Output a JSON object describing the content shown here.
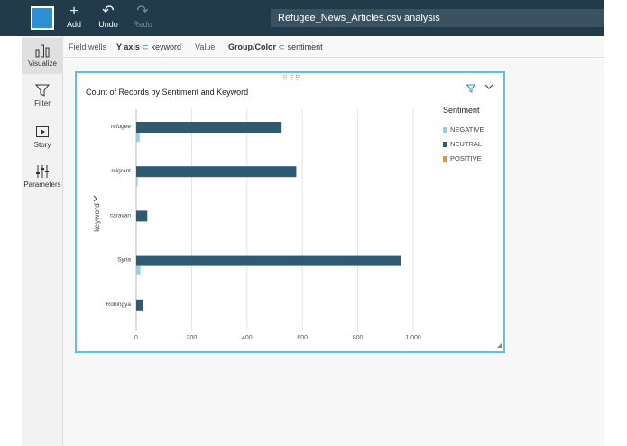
{
  "toolbar": {
    "add_label": "Add",
    "undo_label": "Undo",
    "redo_label": "Redo",
    "analysis_title": "Refugee_News_Articles.csv analysis"
  },
  "nav": {
    "items": [
      {
        "label": "Visualize",
        "icon": "bar-chart-icon"
      },
      {
        "label": "Filter",
        "icon": "filter-icon"
      },
      {
        "label": "Story",
        "icon": "story-icon"
      },
      {
        "label": "Parameters",
        "icon": "parameters-icon"
      }
    ]
  },
  "fieldwells": {
    "label": "Field wells",
    "y_axis_label": "Y axis",
    "y_axis_value": "keyword",
    "value_label": "Value",
    "group_label": "Group/Color",
    "group_value": "sentiment"
  },
  "visual": {
    "title": "Count of Records by Sentiment and Keyword",
    "legend_title": "Sentiment",
    "legend": [
      {
        "name": "NEGATIVE",
        "color": "#8fd0ea"
      },
      {
        "name": "NEUTRAL",
        "color": "#2e5a72"
      },
      {
        "name": "POSITIVE",
        "color": "#f28e2b"
      }
    ]
  },
  "chart_data": {
    "type": "bar",
    "orientation": "horizontal",
    "title": "Count of Records by Sentiment and Keyword",
    "ylabel": "keyword",
    "categories": [
      "refugee",
      "migrant",
      "caravan",
      "Syria",
      "Rohingya"
    ],
    "series": [
      {
        "name": "NEUTRAL",
        "color": "#2e5a72",
        "values": [
          525,
          578,
          40,
          955,
          25
        ]
      },
      {
        "name": "NEGATIVE",
        "color": "#8fd0ea",
        "values": [
          12,
          5,
          0,
          15,
          0
        ]
      },
      {
        "name": "POSITIVE",
        "color": "#f28e2b",
        "values": [
          0,
          0,
          0,
          0,
          0
        ]
      }
    ],
    "xticks": [
      "0",
      "200",
      "400",
      "600",
      "800",
      "1,000"
    ],
    "xlim": [
      0,
      1000
    ],
    "grid": true,
    "legend_position": "right"
  }
}
